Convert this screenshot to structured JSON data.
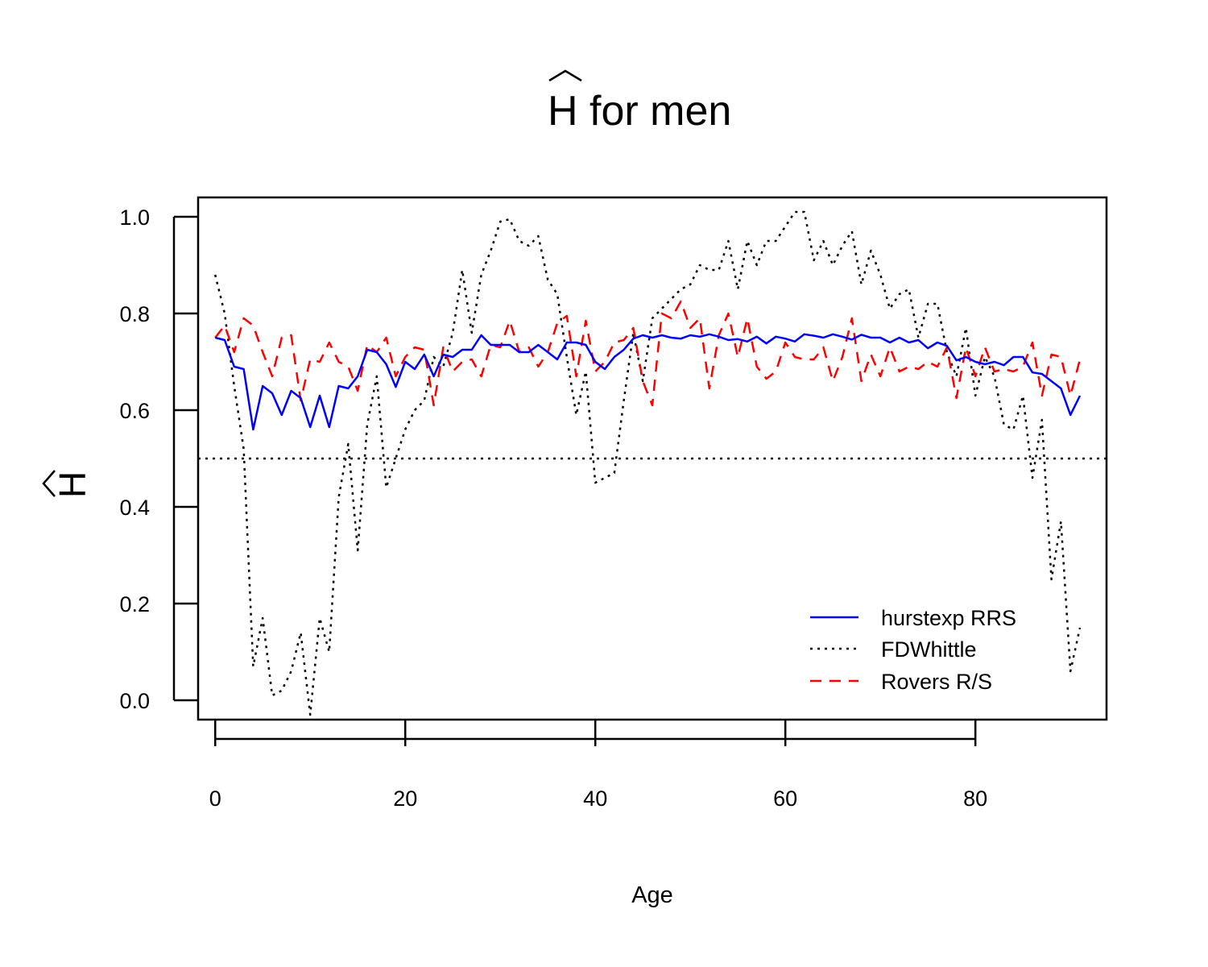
{
  "chart_data": {
    "type": "line",
    "title": "H for men",
    "xlabel": "Age",
    "ylabel": "H",
    "xlim": [
      -1.8,
      93.8
    ],
    "ylim": [
      -0.04,
      1.04
    ],
    "xticks": [
      0,
      20,
      40,
      60,
      80
    ],
    "yticks": [
      0.0,
      0.2,
      0.4,
      0.6,
      0.8,
      1.0
    ],
    "ytick_labels": [
      "0.0",
      "0.2",
      "0.4",
      "0.6",
      "0.8",
      "1.0"
    ],
    "grid": false,
    "legend_position": "bottom-right",
    "reference_line": {
      "y": 0.5,
      "style": "dotted",
      "color": "#000000"
    },
    "x": [
      0,
      1,
      2,
      3,
      4,
      5,
      6,
      7,
      8,
      9,
      10,
      11,
      12,
      13,
      14,
      15,
      16,
      17,
      18,
      19,
      20,
      21,
      22,
      23,
      24,
      25,
      26,
      27,
      28,
      29,
      30,
      31,
      32,
      33,
      34,
      35,
      36,
      37,
      38,
      39,
      40,
      41,
      42,
      43,
      44,
      45,
      46,
      47,
      48,
      49,
      50,
      51,
      52,
      53,
      54,
      55,
      56,
      57,
      58,
      59,
      60,
      61,
      62,
      63,
      64,
      65,
      66,
      67,
      68,
      69,
      70,
      71,
      72,
      73,
      74,
      75,
      76,
      77,
      78,
      79,
      80,
      81,
      82,
      83,
      84,
      85,
      86,
      87,
      88,
      89,
      90,
      91
    ],
    "series": [
      {
        "name": "hurstexp RRS",
        "color": "#0000ff",
        "dash": "solid",
        "values": [
          0.75,
          0.745,
          0.69,
          0.685,
          0.56,
          0.65,
          0.635,
          0.59,
          0.64,
          0.625,
          0.565,
          0.63,
          0.565,
          0.65,
          0.645,
          0.67,
          0.725,
          0.72,
          0.695,
          0.648,
          0.7,
          0.685,
          0.715,
          0.67,
          0.715,
          0.71,
          0.725,
          0.725,
          0.755,
          0.735,
          0.735,
          0.735,
          0.72,
          0.72,
          0.735,
          0.72,
          0.705,
          0.74,
          0.74,
          0.735,
          0.7,
          0.685,
          0.71,
          0.725,
          0.748,
          0.755,
          0.75,
          0.755,
          0.75,
          0.748,
          0.755,
          0.752,
          0.757,
          0.752,
          0.745,
          0.747,
          0.742,
          0.752,
          0.738,
          0.752,
          0.748,
          0.742,
          0.757,
          0.754,
          0.75,
          0.757,
          0.752,
          0.746,
          0.756,
          0.75,
          0.75,
          0.74,
          0.75,
          0.74,
          0.745,
          0.728,
          0.74,
          0.733,
          0.703,
          0.71,
          0.7,
          0.695,
          0.7,
          0.693,
          0.71,
          0.71,
          0.678,
          0.675,
          0.66,
          0.645,
          0.59,
          0.63
        ]
      },
      {
        "name": "FDWhittle",
        "color": "#000000",
        "dash": "dotted",
        "values": [
          0.88,
          0.8,
          0.65,
          0.52,
          0.07,
          0.17,
          0.01,
          0.02,
          0.06,
          0.14,
          -0.03,
          0.17,
          0.1,
          0.42,
          0.53,
          0.31,
          0.57,
          0.67,
          0.44,
          0.5,
          0.56,
          0.6,
          0.62,
          0.71,
          0.69,
          0.76,
          0.89,
          0.76,
          0.88,
          0.93,
          0.99,
          0.995,
          0.95,
          0.94,
          0.96,
          0.87,
          0.84,
          0.71,
          0.59,
          0.68,
          0.45,
          0.46,
          0.47,
          0.62,
          0.76,
          0.66,
          0.79,
          0.81,
          0.83,
          0.85,
          0.86,
          0.9,
          0.89,
          0.89,
          0.95,
          0.85,
          0.95,
          0.9,
          0.95,
          0.95,
          0.98,
          1.01,
          1.01,
          0.91,
          0.95,
          0.9,
          0.94,
          0.97,
          0.86,
          0.93,
          0.88,
          0.81,
          0.84,
          0.85,
          0.75,
          0.82,
          0.82,
          0.72,
          0.67,
          0.77,
          0.63,
          0.71,
          0.67,
          0.57,
          0.56,
          0.63,
          0.46,
          0.58,
          0.25,
          0.37,
          0.06,
          0.15
        ]
      },
      {
        "name": "Rovers R/S",
        "color": "#ff0000",
        "dash": "dashed",
        "values": [
          0.75,
          0.775,
          0.72,
          0.79,
          0.775,
          0.72,
          0.67,
          0.75,
          0.755,
          0.62,
          0.705,
          0.7,
          0.74,
          0.7,
          0.69,
          0.64,
          0.735,
          0.72,
          0.75,
          0.67,
          0.71,
          0.73,
          0.725,
          0.61,
          0.73,
          0.68,
          0.7,
          0.705,
          0.67,
          0.735,
          0.73,
          0.785,
          0.72,
          0.73,
          0.69,
          0.72,
          0.78,
          0.795,
          0.67,
          0.785,
          0.68,
          0.7,
          0.74,
          0.745,
          0.77,
          0.66,
          0.61,
          0.8,
          0.79,
          0.825,
          0.77,
          0.79,
          0.645,
          0.755,
          0.8,
          0.71,
          0.79,
          0.69,
          0.665,
          0.68,
          0.74,
          0.71,
          0.705,
          0.705,
          0.73,
          0.66,
          0.71,
          0.79,
          0.66,
          0.715,
          0.67,
          0.73,
          0.68,
          0.69,
          0.685,
          0.7,
          0.69,
          0.73,
          0.625,
          0.73,
          0.67,
          0.73,
          0.68,
          0.685,
          0.68,
          0.69,
          0.74,
          0.63,
          0.715,
          0.71,
          0.63,
          0.705
        ]
      }
    ]
  }
}
